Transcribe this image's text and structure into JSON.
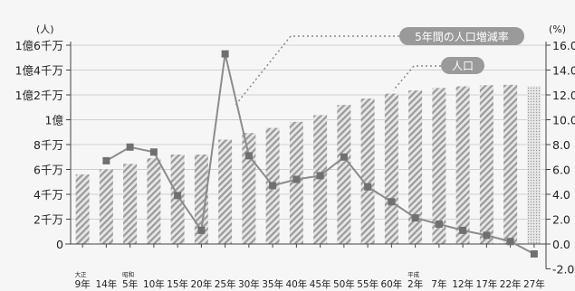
{
  "chart_data": {
    "type": "bar",
    "categories": [
      "9年",
      "14年",
      "5年",
      "10年",
      "15年",
      "20年",
      "25年",
      "30年",
      "35年",
      "40年",
      "45年",
      "50年",
      "55年",
      "60年",
      "2年",
      "7年",
      "12年",
      "17年",
      "22年",
      "27年"
    ],
    "era_labels": {
      "0": "大正",
      "2": "昭和",
      "14": "平成"
    },
    "left_axis": {
      "unit": "(人)",
      "ylim": [
        0,
        160000000
      ],
      "ticks": [
        0,
        20000000,
        40000000,
        60000000,
        80000000,
        100000000,
        120000000,
        140000000,
        160000000
      ],
      "tick_labels": [
        "0",
        "2千万",
        "4千万",
        "6千万",
        "8千万",
        "1億",
        "1億2千万",
        "1億4千万",
        "1億6千万"
      ]
    },
    "right_axis": {
      "unit": "(%)",
      "ylim": [
        -2.0,
        16.0
      ],
      "ticks": [
        -2,
        0,
        2,
        4,
        6,
        8,
        10,
        12,
        14,
        16
      ],
      "tick_labels": [
        "-2.0",
        "0.0",
        "2.0",
        "4.0",
        "6.0",
        "8.0",
        "10.0",
        "12.0",
        "14.0",
        "16.0"
      ]
    },
    "series": [
      {
        "name": "人口",
        "type": "bar",
        "axis": "left",
        "values": [
          56000000,
          60000000,
          64500000,
          69000000,
          72000000,
          72000000,
          84000000,
          89300000,
          93400000,
          98300000,
          103700000,
          111900000,
          117100000,
          121000000,
          123600000,
          125600000,
          126900000,
          127800000,
          128100000,
          127100000
        ]
      },
      {
        "name": "5年間の人口増減率",
        "type": "line",
        "axis": "right",
        "values": [
          null,
          6.7,
          7.8,
          7.4,
          3.9,
          1.1,
          15.3,
          7.1,
          4.7,
          5.2,
          5.5,
          7.0,
          4.6,
          3.4,
          2.1,
          1.6,
          1.1,
          0.7,
          0.2,
          -0.8
        ]
      }
    ],
    "legend": {
      "bar_label": "人口",
      "line_label": "5年間の人口増減率"
    },
    "grid": true
  }
}
